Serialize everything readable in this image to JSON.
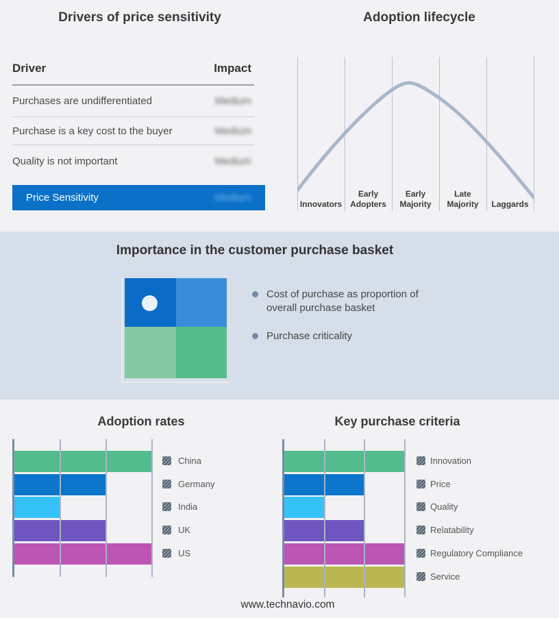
{
  "page": {
    "footer": "www.technavio.com"
  },
  "colors": {
    "page_bg": "#f2f2f4",
    "band_bg": "#d6dee9",
    "highlight_row_bg": "#0b70c8",
    "curve": "#a9b7cb",
    "bar_axis": "#7b8aa6",
    "gridline": "#a9b4c6",
    "bullet_dot": "#7488a8"
  },
  "drivers_panel": {
    "title": "Drivers of price sensitivity",
    "columns": {
      "driver": "Driver",
      "impact": "Impact"
    },
    "rows": [
      {
        "driver": "Purchases are undifferentiated",
        "impact": "Medium",
        "impact_blurred": true
      },
      {
        "driver": "Purchase is a key cost to the buyer",
        "impact": "Medium",
        "impact_blurred": true
      },
      {
        "driver": "Quality is not important",
        "impact": "Medium",
        "impact_blurred": true
      }
    ],
    "highlight_row": {
      "driver": "Price Sensitivity",
      "impact": "Medium",
      "impact_blurred": true
    }
  },
  "lifecycle_panel": {
    "title": "Adoption lifecycle",
    "stages": [
      "Innovators",
      "Early Adopters",
      "Early Majority",
      "Late Majority",
      "Laggards"
    ]
  },
  "basket_panel": {
    "title": "Importance in the customer purchase basket",
    "bullets": [
      "Cost of purchase as proportion of overall purchase basket",
      "Purchase criticality"
    ],
    "quadrant": {
      "top_left": "#0a6cc6",
      "top_right": "#3a8dd8",
      "bottom_left": "#84c7a3",
      "bottom_right": "#54bd8b",
      "marker_note": "white dot in top-left quadrant"
    }
  },
  "chart_data": [
    {
      "type": "line",
      "title": "Adoption lifecycle",
      "x_categories": [
        "Innovators",
        "Early Adopters",
        "Early Majority",
        "Late Majority",
        "Laggards"
      ],
      "points_rel": [
        [
          0,
          0.14
        ],
        [
          0.2,
          0.53
        ],
        [
          0.4,
          0.8
        ],
        [
          0.475,
          0.84
        ],
        [
          0.6,
          0.75
        ],
        [
          0.8,
          0.46
        ],
        [
          1.0,
          0.1
        ]
      ],
      "note": "Unlabeled bell-shaped adoption curve peaking at Early Majority",
      "grid": "vertical category separators only",
      "legend_position": "none"
    },
    {
      "type": "bar",
      "title": "Adoption rates",
      "orientation": "horizontal",
      "categories": [
        "China",
        "Germany",
        "India",
        "UK",
        "US"
      ],
      "values": [
        3,
        2,
        1,
        2,
        3
      ],
      "colors": [
        "#53bc8e",
        "#0b76cb",
        "#35c2f6",
        "#6e55bf",
        "#bd55b5"
      ],
      "xlim": [
        0,
        3
      ],
      "value_unit": "relative gridline units (no numeric axis labels shown)",
      "grid": "vertical gridlines at each unit",
      "legend_position": "right"
    },
    {
      "type": "bar",
      "title": "Key purchase criteria",
      "orientation": "horizontal",
      "categories": [
        "Innovation",
        "Price",
        "Quality",
        "Relatability",
        "Regulatory Compliance",
        "Service"
      ],
      "values": [
        3,
        2,
        1,
        2,
        3,
        3
      ],
      "colors": [
        "#53bc8e",
        "#0b76cb",
        "#35c2f6",
        "#6e55bf",
        "#bd55b5",
        "#bab751"
      ],
      "xlim": [
        0,
        3
      ],
      "value_unit": "relative gridline units (no numeric axis labels shown)",
      "grid": "vertical gridlines at each unit",
      "legend_position": "right"
    },
    {
      "type": "heatmap",
      "title": "Importance in the customer purchase basket",
      "layout": "2x2 quadrant",
      "cell_colors": [
        [
          "#0a6cc6",
          "#3a8dd8"
        ],
        [
          "#84c7a3",
          "#54bd8b"
        ]
      ],
      "marker": {
        "cell": "top-left",
        "x_rel": 0.25,
        "y_rel": 0.25,
        "shape": "white circle"
      }
    }
  ]
}
